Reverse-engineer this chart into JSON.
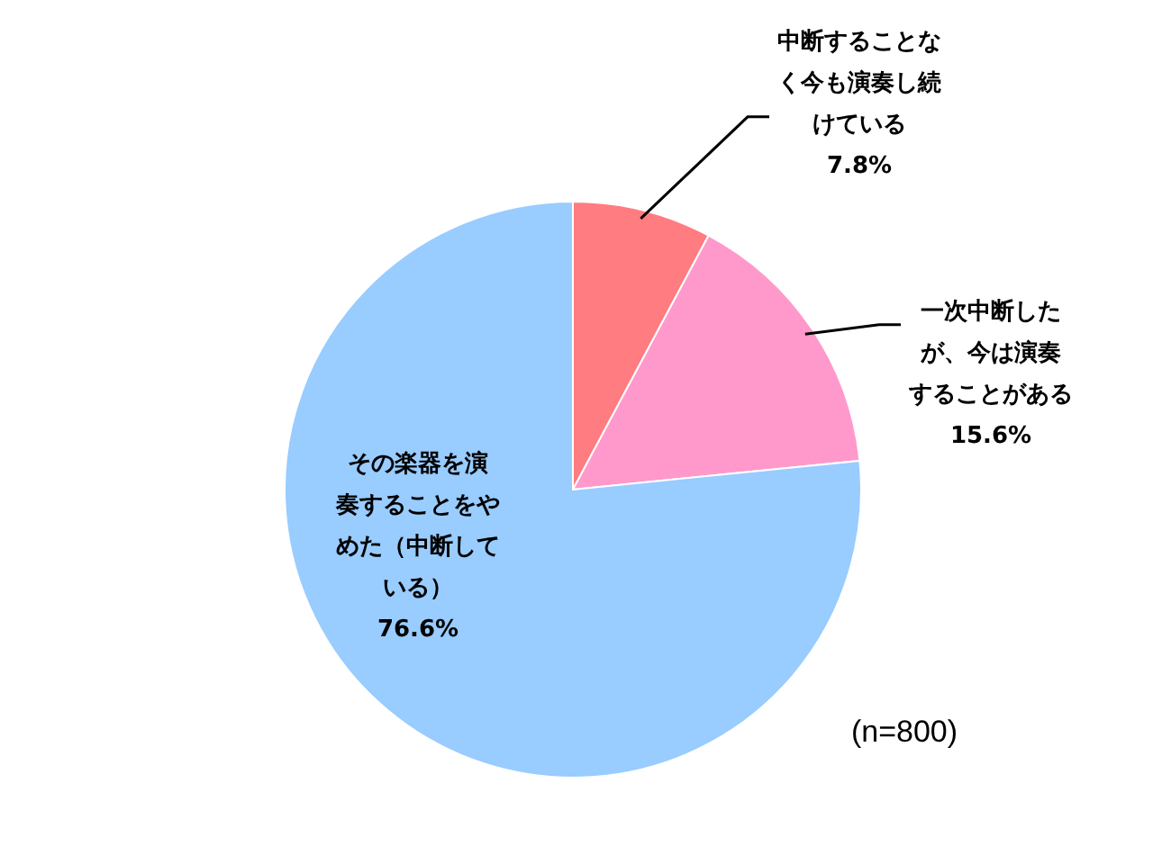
{
  "chart_data": {
    "type": "pie",
    "categories": [
      "中断することなく今も演奏し続けている",
      "一次中断したが、今は演奏することがある",
      "その楽器を演奏することをやめた（中断している）"
    ],
    "values": [
      7.8,
      15.6,
      76.6
    ],
    "colors": [
      "#ff7c80",
      "#ff99cc",
      "#99ccff"
    ],
    "value_labels": [
      "7.8%",
      "15.6%",
      "76.6%"
    ],
    "annotations": [
      "(n=800)"
    ]
  }
}
